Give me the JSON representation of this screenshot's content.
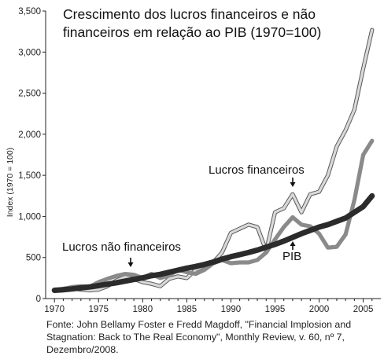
{
  "chart_data": {
    "type": "line",
    "title_line1": "Crescimento dos lucros financeiros  e não",
    "title_line2": "financeiros em relação ao PIB (1970=100)",
    "ylabel": "Index (1970 = 100)",
    "xlabel": "",
    "xlim": [
      1969,
      2007
    ],
    "ylim": [
      0,
      3500
    ],
    "x_ticks": [
      1970,
      1975,
      1980,
      1985,
      1990,
      1995,
      2000,
      2005
    ],
    "y_ticks": [
      0,
      500,
      1000,
      1500,
      2000,
      2500,
      3000,
      3500
    ],
    "y_tick_labels": [
      "0",
      "500",
      "1,000",
      "1,500",
      "2,000",
      "2,500",
      "3,000",
      "3,500"
    ],
    "x": [
      1970,
      1971,
      1972,
      1973,
      1974,
      1975,
      1976,
      1977,
      1978,
      1979,
      1980,
      1981,
      1982,
      1983,
      1984,
      1985,
      1986,
      1987,
      1988,
      1989,
      1990,
      1991,
      1992,
      1993,
      1994,
      1995,
      1996,
      1997,
      1998,
      1999,
      2000,
      2001,
      2002,
      2003,
      2004,
      2005,
      2006
    ],
    "series": [
      {
        "name": "Lucros financeiros",
        "color": "#cfcfcf",
        "values": [
          100,
          110,
          125,
          110,
          100,
          110,
          150,
          220,
          260,
          240,
          200,
          180,
          150,
          240,
          270,
          250,
          350,
          400,
          440,
          560,
          800,
          850,
          900,
          870,
          580,
          1050,
          1100,
          1270,
          1050,
          1270,
          1300,
          1500,
          1850,
          2050,
          2300,
          2800,
          3270
        ]
      },
      {
        "name": "Lucros não financeiros",
        "color": "#8e8e8e",
        "values": [
          100,
          120,
          140,
          150,
          145,
          200,
          240,
          275,
          300,
          290,
          250,
          300,
          250,
          280,
          350,
          320,
          300,
          350,
          430,
          470,
          430,
          440,
          440,
          470,
          560,
          720,
          870,
          990,
          900,
          880,
          790,
          620,
          630,
          780,
          1200,
          1750,
          1920
        ]
      },
      {
        "name": "PIB",
        "color": "#2a2a2a",
        "values": [
          100,
          108,
          118,
          130,
          142,
          158,
          175,
          192,
          212,
          232,
          252,
          278,
          295,
          320,
          345,
          370,
          390,
          415,
          445,
          480,
          510,
          535,
          560,
          590,
          625,
          660,
          700,
          745,
          790,
          830,
          870,
          900,
          940,
          980,
          1050,
          1120,
          1250
        ]
      }
    ],
    "annotations": {
      "lucros_financeiros": "Lucros financeiros",
      "lucros_nao_financeiros": "Lucros não financeiros",
      "pib": "PIB"
    }
  },
  "source_note": "Fonte: John Bellamy Foster e Fredd Magdoff, \"Financial Implosion and Stagnation: Back to The Real Economy\", Monthly Review, v. 60, nº 7, Dezembro/2008."
}
